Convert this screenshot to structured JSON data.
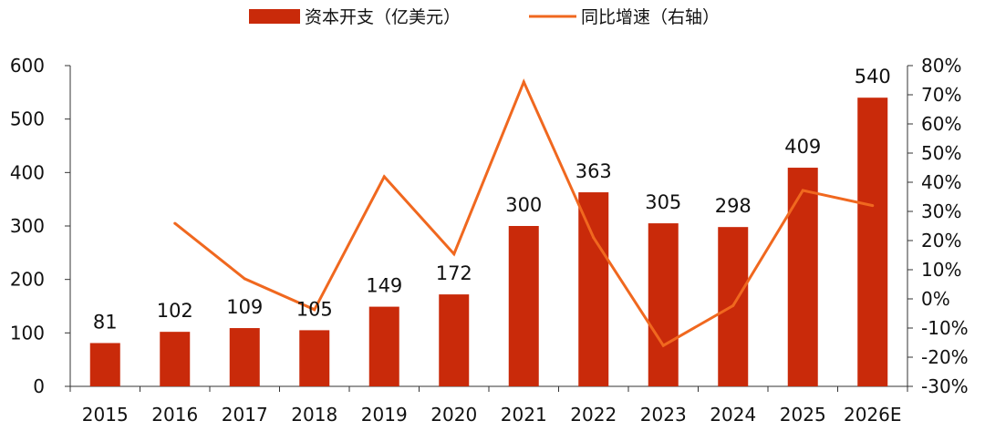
{
  "chart_data": {
    "type": "bar",
    "categories": [
      "2015",
      "2016",
      "2017",
      "2018",
      "2019",
      "2020",
      "2021",
      "2022",
      "2023",
      "2024",
      "2025",
      "2026E"
    ],
    "series": [
      {
        "name": "资本开支（亿美元）",
        "type": "bar",
        "axis": "left",
        "values": [
          81,
          102,
          109,
          105,
          149,
          172,
          300,
          363,
          305,
          298,
          409,
          540
        ],
        "color": "#C92A0A"
      },
      {
        "name": "同比增速（右轴）",
        "type": "line",
        "axis": "right",
        "values": [
          null,
          25.9,
          6.9,
          -3.7,
          41.9,
          15.4,
          74.4,
          21.0,
          -16.0,
          -2.3,
          37.2,
          32.0
        ],
        "color": "#F0681F"
      }
    ],
    "y_left": {
      "ylim": [
        0,
        600
      ],
      "ticks": [
        0,
        100,
        200,
        300,
        400,
        500,
        600
      ],
      "tick_labels": [
        "0",
        "100",
        "200",
        "300",
        "400",
        "500",
        "600"
      ]
    },
    "y_right": {
      "ylim": [
        -30,
        80
      ],
      "ticks": [
        -30,
        -20,
        -10,
        0,
        10,
        20,
        30,
        40,
        50,
        60,
        70,
        80
      ],
      "tick_labels": [
        "-30%",
        "-20%",
        "-10%",
        "0%",
        "10%",
        "20%",
        "30%",
        "40%",
        "50%",
        "60%",
        "70%",
        "80%"
      ]
    },
    "data_labels": [
      "81",
      "102",
      "109",
      "105",
      "149",
      "172",
      "300",
      "363",
      "305",
      "298",
      "409",
      "540"
    ],
    "legend": {
      "position": "top-center",
      "items": [
        "资本开支（亿美元）",
        "同比增速（右轴）"
      ]
    },
    "grid": false
  }
}
